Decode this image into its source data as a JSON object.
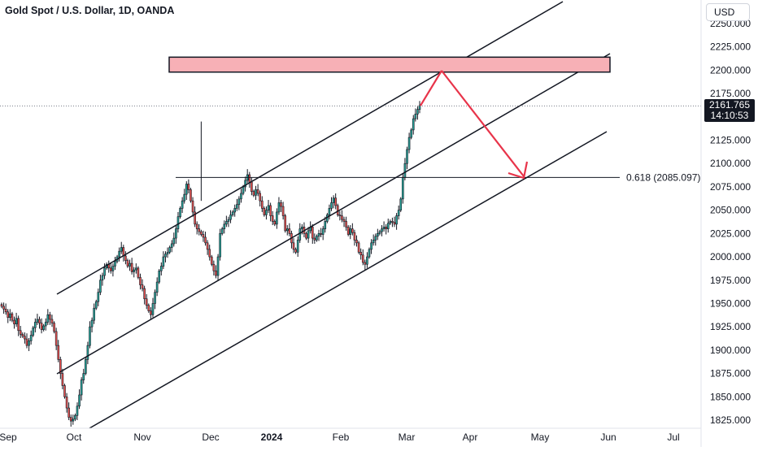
{
  "header": {
    "title": "Gold Spot / U.S. Dollar, 1D, OANDA"
  },
  "currency_button": {
    "label": "USD"
  },
  "last_price": {
    "value": "2161.765",
    "countdown": "14:10:53"
  },
  "fib_level": {
    "label": "0.618 (2085.097)"
  },
  "colors": {
    "up": "#26a69a",
    "down": "#ef5350",
    "wick": "#131722",
    "zone_fill": "#f7b0b6",
    "arrow": "#e8344a"
  },
  "chart_data": {
    "type": "candlestick",
    "title": "Gold Spot / U.S. Dollar, 1D, OANDA",
    "y_ticks": [
      "2250.000",
      "2225.000",
      "2200.000",
      "2175.000",
      "2150.000",
      "2125.000",
      "2100.000",
      "2075.000",
      "2050.000",
      "2025.000",
      "2000.000",
      "1975.000",
      "1950.000",
      "1925.000",
      "1900.000",
      "1875.000",
      "1850.000",
      "1825.000"
    ],
    "x_ticks": [
      "Sep",
      "Oct",
      "Nov",
      "Dec",
      "2024",
      "Feb",
      "Mar",
      "Apr",
      "May",
      "Jun",
      "Jul"
    ],
    "ylim": [
      1815,
      2262
    ],
    "last_price": 2161.765,
    "horizontal_level": {
      "label": "0.618 (2085.097)",
      "value": 2085.097
    },
    "resistance_zone": {
      "from": 2198,
      "to": 2214
    },
    "series_close": [
      1947,
      1944,
      1941,
      1935,
      1939,
      1932,
      1928,
      1934,
      1921,
      1917,
      1915,
      1912,
      1905,
      1910,
      1916,
      1924,
      1930,
      1933,
      1929,
      1922,
      1926,
      1930,
      1938,
      1933,
      1929,
      1920,
      1905,
      1890,
      1875,
      1862,
      1850,
      1838,
      1828,
      1824,
      1826,
      1830,
      1840,
      1852,
      1868,
      1875,
      1890,
      1905,
      1925,
      1932,
      1945,
      1952,
      1962,
      1975,
      1980,
      1988,
      1992,
      1988,
      1985,
      1990,
      1995,
      2000,
      2006,
      2010,
      2001,
      1996,
      1990,
      1993,
      1984,
      1986,
      1988,
      1978,
      1970,
      1966,
      1955,
      1948,
      1942,
      1938,
      1950,
      1962,
      1973,
      1985,
      1990,
      2000,
      2003,
      2005,
      2010,
      2014,
      2020,
      2030,
      2043,
      2052,
      2060,
      2067,
      2078,
      2072,
      2060,
      2048,
      2035,
      2030,
      2027,
      2024,
      2021,
      2015,
      2008,
      2000,
      1992,
      1985,
      1980,
      2000,
      2025,
      2030,
      2035,
      2038,
      2040,
      2045,
      2048,
      2052,
      2056,
      2062,
      2068,
      2075,
      2082,
      2088,
      2080,
      2070,
      2066,
      2072,
      2068,
      2060,
      2052,
      2045,
      2050,
      2055,
      2044,
      2038,
      2035,
      2048,
      2058,
      2054,
      2044,
      2028,
      2030,
      2025,
      2015,
      2008,
      2005,
      2018,
      2030,
      2032,
      2025,
      2020,
      2028,
      2032,
      2020,
      2018,
      2022,
      2025,
      2024,
      2030,
      2038,
      2045,
      2052,
      2058,
      2063,
      2055,
      2045,
      2044,
      2040,
      2038,
      2032,
      2024,
      2030,
      2026,
      2018,
      2015,
      2005,
      2002,
      1994,
      1992,
      2000,
      2008,
      2015,
      2018,
      2022,
      2025,
      2027,
      2030,
      2032,
      2030,
      2036,
      2038,
      2037,
      2035,
      2044,
      2050,
      2062,
      2085,
      2100,
      2115,
      2128,
      2136,
      2148,
      2153,
      2158,
      2162
    ]
  }
}
